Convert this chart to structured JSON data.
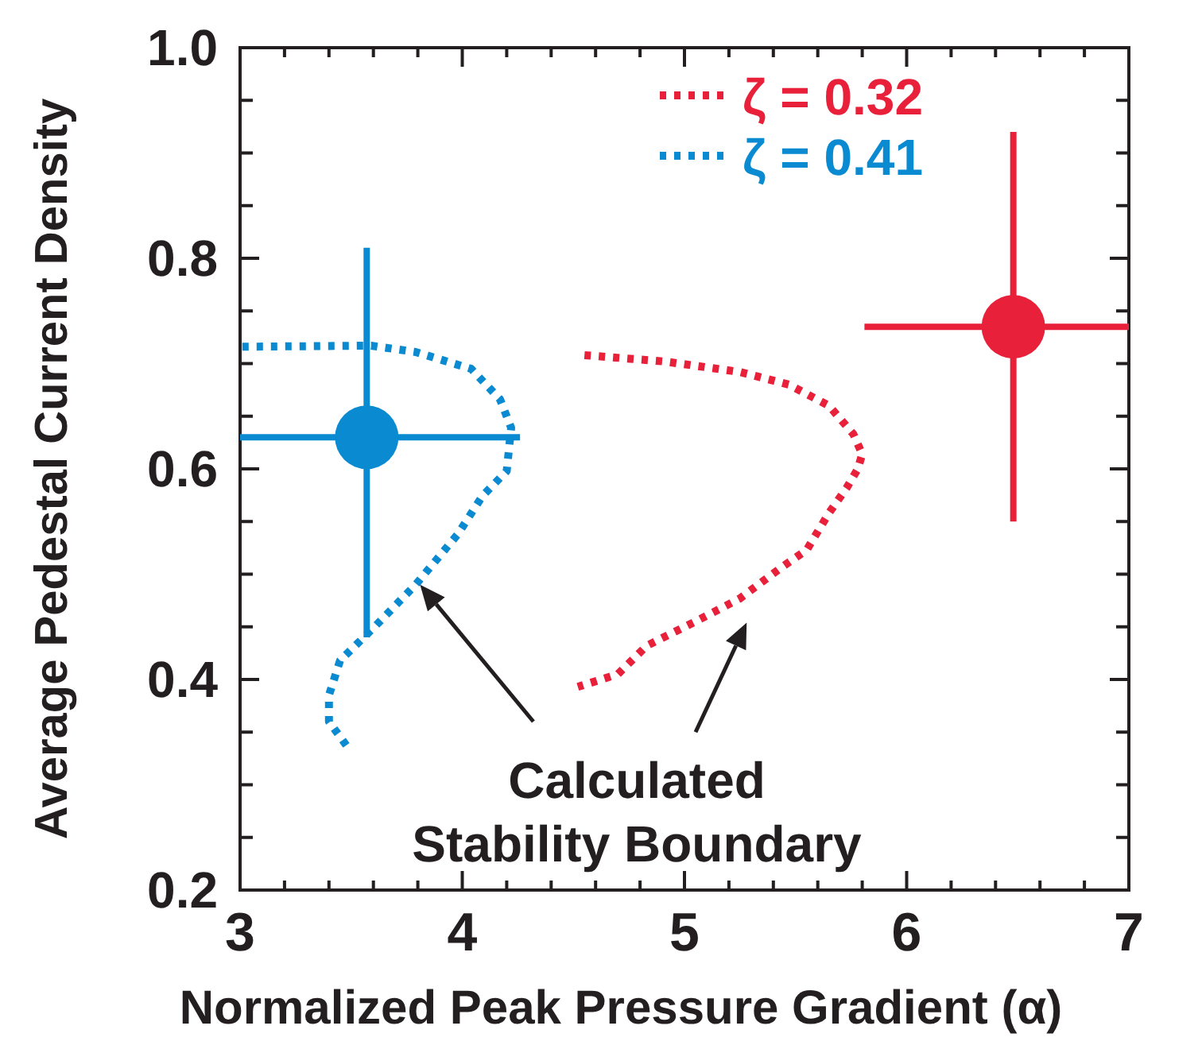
{
  "chart_data": {
    "type": "line",
    "xlabel": "Normalized Peak Pressure Gradient (α)",
    "ylabel": "Average Pedestal Current Density",
    "xlim": [
      3,
      7
    ],
    "ylim": [
      0.2,
      1.0
    ],
    "xticks": [
      3,
      {
        "value": 3.2,
        "label": null
      },
      {
        "value": 3.4,
        "label": null
      },
      {
        "value": 3.6,
        "label": null
      },
      {
        "value": 3.8,
        "label": null
      },
      4,
      {
        "value": 4.2,
        "label": null
      },
      {
        "value": 4.4,
        "label": null
      },
      {
        "value": 4.6,
        "label": null
      },
      {
        "value": 4.8,
        "label": null
      },
      5,
      {
        "value": 5.2,
        "label": null
      },
      {
        "value": 5.4,
        "label": null
      },
      {
        "value": 5.6,
        "label": null
      },
      {
        "value": 5.8,
        "label": null
      },
      6,
      {
        "value": 6.2,
        "label": null
      },
      {
        "value": 6.4,
        "label": null
      },
      {
        "value": 6.6,
        "label": null
      },
      {
        "value": 6.8,
        "label": null
      },
      7
    ],
    "yticks": [
      0.2,
      {
        "value": 0.25,
        "label": null
      },
      {
        "value": 0.3,
        "label": null
      },
      {
        "value": 0.35,
        "label": null
      },
      0.4,
      {
        "value": 0.45,
        "label": null
      },
      {
        "value": 0.5,
        "label": null
      },
      {
        "value": 0.55,
        "label": null
      },
      0.6,
      {
        "value": 0.65,
        "label": null
      },
      {
        "value": 0.7,
        "label": null
      },
      {
        "value": 0.75,
        "label": null
      },
      0.8,
      {
        "value": 0.85,
        "label": null
      },
      {
        "value": 0.9,
        "label": null
      },
      {
        "value": 0.95,
        "label": null
      },
      {
        "value": 1.0,
        "label": "1.0"
      }
    ],
    "grid": false,
    "legend": "top right",
    "series": [
      {
        "name": "ζ = 0.32",
        "color": "#e8203a",
        "line_style": "dotted",
        "x": [
          4.55,
          4.91,
          5.25,
          5.47,
          5.65,
          5.76,
          5.8,
          5.78,
          5.73,
          5.65,
          5.55,
          5.44,
          5.25,
          5.04,
          4.83,
          4.7,
          4.52
        ],
        "values": [
          0.708,
          0.702,
          0.692,
          0.68,
          0.66,
          0.633,
          0.614,
          0.6,
          0.582,
          0.558,
          0.523,
          0.507,
          0.477,
          0.454,
          0.432,
          0.405,
          0.393
        ]
      },
      {
        "name": "ζ = 0.41",
        "color": "#0a8ad0",
        "line_style": "dotted",
        "x": [
          3.01,
          3.59,
          3.79,
          4.04,
          4.17,
          4.22,
          4.2,
          4.09,
          3.98,
          3.79,
          3.61,
          3.45,
          3.4,
          3.4,
          3.49
        ],
        "values": [
          0.716,
          0.717,
          0.711,
          0.695,
          0.666,
          0.639,
          0.598,
          0.574,
          0.538,
          0.49,
          0.451,
          0.418,
          0.385,
          0.36,
          0.334
        ]
      },
      {
        "color": "#0a8ad0",
        "type": "scatter",
        "marker": "circle",
        "x": [
          3.57
        ],
        "values": [
          0.63
        ],
        "errors": [
          [
            0.44,
            0.81
          ]
        ],
        "xerrors": [
          [
            3.0,
            4.26
          ]
        ]
      },
      {
        "color": "#e8203a",
        "type": "scatter",
        "marker": "circle",
        "x": [
          6.48
        ],
        "values": [
          0.735
        ],
        "errors": [
          [
            0.55,
            0.92
          ]
        ],
        "xerrors": [
          [
            5.81,
            7.0
          ]
        ]
      }
    ],
    "annotations": [
      "Calculated\nStability Boundary"
    ]
  }
}
